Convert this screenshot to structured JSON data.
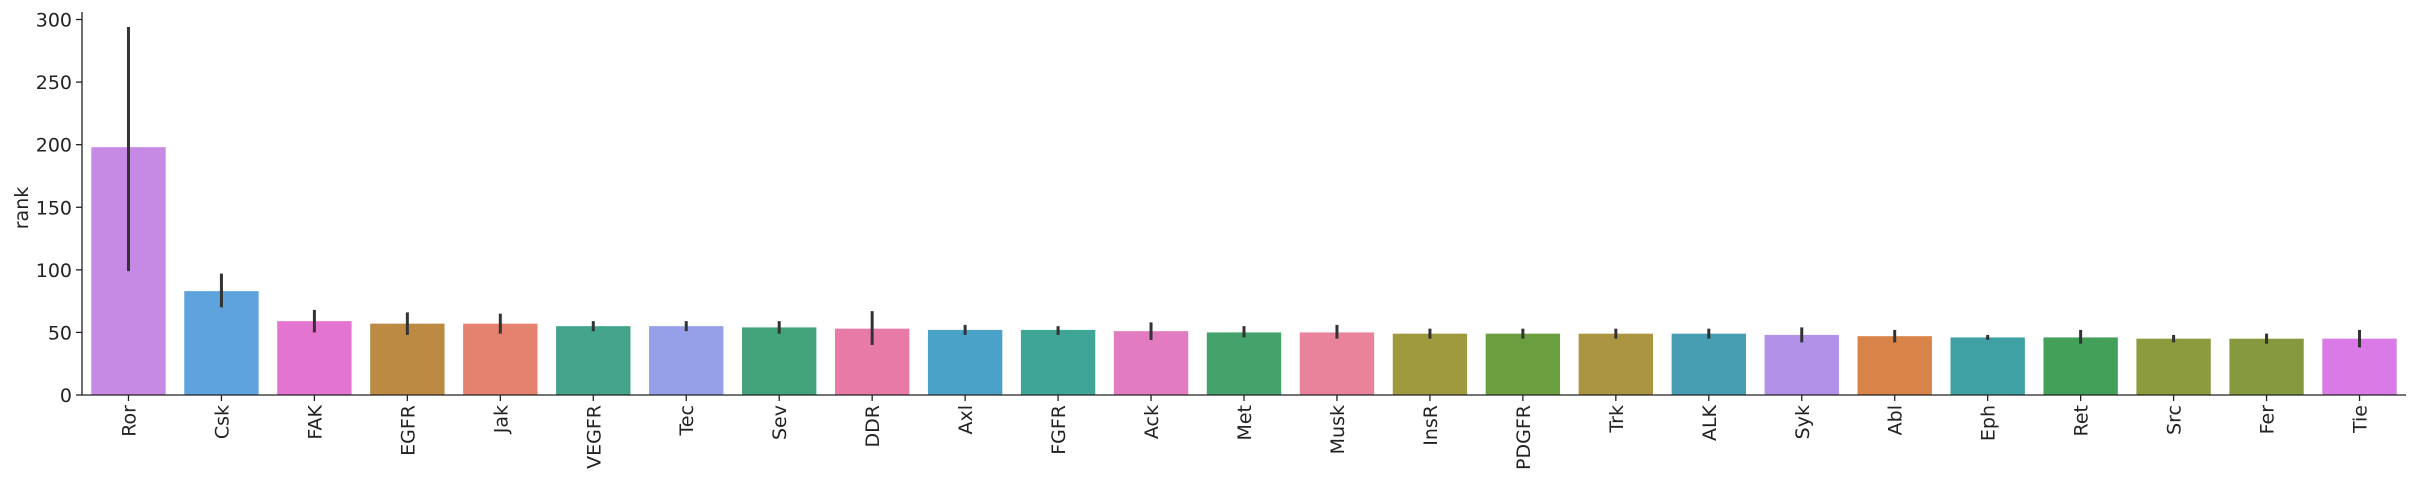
{
  "chart_data": {
    "type": "bar",
    "ylabel": "rank",
    "categories": [
      "Ror",
      "Csk",
      "FAK",
      "EGFR",
      "Jak",
      "VEGFR",
      "Tec",
      "Sev",
      "DDR",
      "Axl",
      "FGFR",
      "Ack",
      "Met",
      "Musk",
      "InsR",
      "PDGFR",
      "Trk",
      "ALK",
      "Syk",
      "Abl",
      "Eph",
      "Ret",
      "Src",
      "Fer",
      "Tie"
    ],
    "values": [
      198,
      83,
      59,
      57,
      57,
      55,
      55,
      54,
      53,
      52,
      52,
      51,
      50,
      50,
      49,
      49,
      49,
      49,
      48,
      47,
      46,
      46,
      45,
      45,
      45
    ],
    "ci_low": [
      99,
      70,
      50,
      48,
      49,
      51,
      51,
      49,
      40,
      48,
      48,
      44,
      46,
      45,
      45,
      45,
      45,
      45,
      42,
      42,
      44,
      41,
      42,
      41,
      38
    ],
    "ci_high": [
      294,
      97,
      68,
      66,
      65,
      59,
      59,
      59,
      67,
      56,
      55,
      58,
      55,
      56,
      53,
      53,
      53,
      53,
      54,
      52,
      48,
      52,
      48,
      49,
      52
    ],
    "colors": [
      "#c78ae4",
      "#5fa3de",
      "#e374cf",
      "#bd8a44",
      "#e5826f",
      "#43a38b",
      "#96a0e8",
      "#43a37a",
      "#e87aa8",
      "#4aa2c8",
      "#3fa596",
      "#e27bbf",
      "#43a36b",
      "#e8839b",
      "#9f9a3e",
      "#6a9e3e",
      "#ab9543",
      "#479eb3",
      "#b291e8",
      "#d88448",
      "#3fa1a3",
      "#42a058",
      "#8c9b3e",
      "#86993f",
      "#d97ae6"
    ],
    "ylim": [
      0,
      306
    ],
    "yticks": [
      0,
      50,
      100,
      150,
      200,
      250,
      300
    ]
  }
}
